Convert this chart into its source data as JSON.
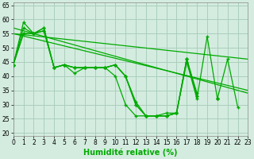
{
  "xlabel": "Humidité relative (%)",
  "background_color": "#d4ece0",
  "grid_color": "#aacfbb",
  "line_color": "#00aa00",
  "xlim": [
    0,
    23
  ],
  "ylim": [
    19,
    66
  ],
  "yticks": [
    20,
    25,
    30,
    35,
    40,
    45,
    50,
    55,
    60,
    65
  ],
  "xticks": [
    0,
    1,
    2,
    3,
    4,
    5,
    6,
    7,
    8,
    9,
    10,
    11,
    12,
    13,
    14,
    15,
    16,
    17,
    18,
    19,
    20,
    21,
    22,
    23
  ],
  "series": [
    [
      44,
      59,
      55,
      56,
      43,
      44,
      41,
      43,
      43,
      43,
      40,
      30,
      26,
      26,
      26,
      27,
      27,
      45,
      32,
      54,
      32,
      46,
      29,
      null
    ],
    [
      44,
      55,
      55,
      56,
      43,
      44,
      43,
      43,
      43,
      43,
      44,
      40,
      30,
      26,
      26,
      26,
      27,
      46,
      33,
      null,
      32,
      null,
      null,
      null
    ],
    [
      44,
      55,
      55,
      57,
      43,
      44,
      43,
      43,
      43,
      43,
      44,
      40,
      30,
      26,
      26,
      26,
      27,
      46,
      34,
      null,
      32,
      null,
      null,
      null
    ],
    [
      44,
      57,
      55,
      57,
      43,
      44,
      43,
      43,
      43,
      43,
      44,
      40,
      31,
      26,
      26,
      26,
      27,
      46,
      33,
      null,
      32,
      null,
      null,
      null
    ]
  ],
  "trend_lines": [
    {
      "x0": 0,
      "y0": 55,
      "x1": 23,
      "y1": 46
    },
    {
      "x0": 0,
      "y0": 55,
      "x1": 23,
      "y1": 35
    },
    {
      "x0": 0,
      "y0": 57,
      "x1": 23,
      "y1": 34
    }
  ],
  "xlabel_fontsize": 7,
  "tick_fontsize": 5.5
}
